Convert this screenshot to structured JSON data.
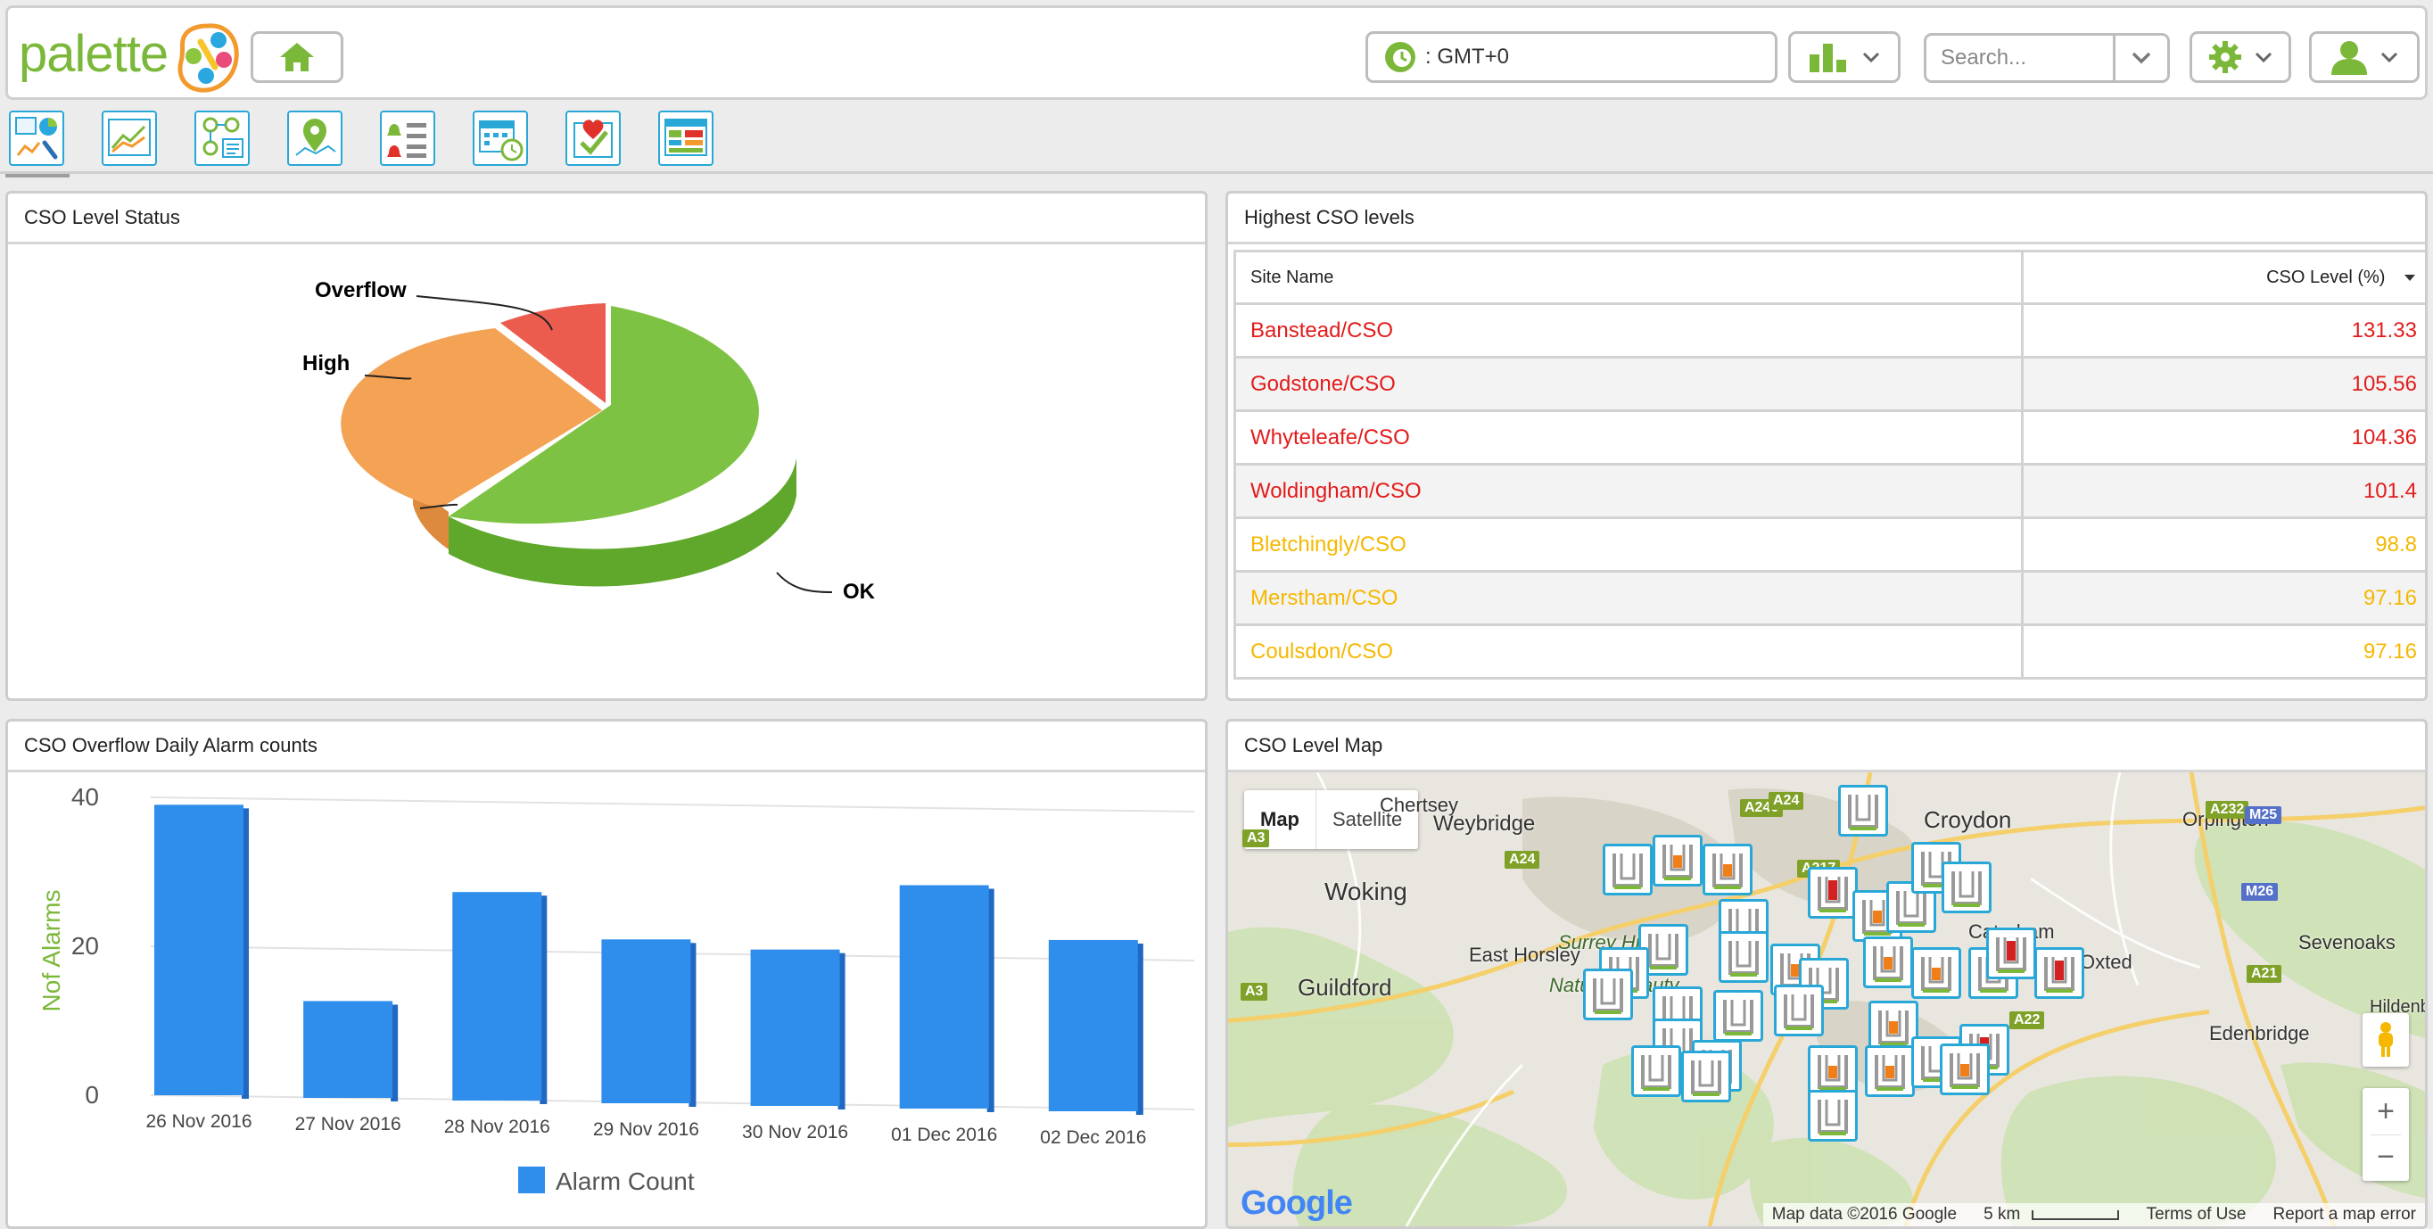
{
  "header": {
    "logo_text": "palette",
    "timezone": ": GMT+0",
    "search_placeholder": "Search...",
    "icons": [
      "home-icon",
      "timezone-icon",
      "bar-chart-icon",
      "chevron-down-icon",
      "gear-icon",
      "user-icon"
    ]
  },
  "nav": {
    "items": [
      "dashboard-icon",
      "trend-icon",
      "network-icon",
      "map-pin-icon",
      "alarm-list-icon",
      "calendar-clock-icon",
      "health-check-icon",
      "report-table-icon"
    ]
  },
  "colors": {
    "accent": "#29a8d8",
    "brand_green": "#7bb83a",
    "ok": "#7dc242",
    "high": "#f4a253",
    "overflow": "#ec5c4e",
    "bar": "#2f8deb",
    "level_red": "#e31b1b",
    "level_yellow": "#f5b800"
  },
  "panels": {
    "status": {
      "title": "CSO Level Status",
      "slices": [
        {
          "label": "OK",
          "percent": 70
        },
        {
          "label": "High",
          "percent": 21
        },
        {
          "label": "Overflow",
          "percent": 9
        }
      ]
    },
    "highest": {
      "title": "Highest CSO levels",
      "col_site": "Site Name",
      "col_level": "CSO Level (%)",
      "rows": [
        {
          "site": "Banstead/CSO",
          "level": "131.33",
          "status": "red"
        },
        {
          "site": "Godstone/CSO",
          "level": "105.56",
          "status": "red"
        },
        {
          "site": "Whyteleafe/CSO",
          "level": "104.36",
          "status": "red"
        },
        {
          "site": "Woldingham/CSO",
          "level": "101.4",
          "status": "red"
        },
        {
          "site": "Bletchingly/CSO",
          "level": "98.8",
          "status": "yellow"
        },
        {
          "site": "Merstham/CSO",
          "level": "97.16",
          "status": "yellow"
        },
        {
          "site": "Coulsdon/CSO",
          "level": "97.16",
          "status": "yellow"
        }
      ]
    },
    "alarms": {
      "title": "CSO Overflow Daily Alarm counts"
    },
    "map": {
      "title": "CSO Level Map",
      "type_map": "Map",
      "type_satellite": "Satellite",
      "places": [
        "Chertsey",
        "Weybridge",
        "Croydon",
        "Orpington",
        "Woking",
        "East Horsley",
        "Caterham",
        "Oxted",
        "Sevenoaks",
        "Guildford",
        "Edenbridge",
        "Hildenborough",
        "Surrey Hills",
        "Natural Beauty"
      ],
      "roads": [
        "A240",
        "A24",
        "A3",
        "A217",
        "A232",
        "M25",
        "M26",
        "A21",
        "A24",
        "A22",
        "A3"
      ],
      "footer_data": "Map data ©2016 Google",
      "footer_scale": "5 km",
      "footer_terms": "Terms of Use",
      "footer_report": "Report a map error",
      "google": "Google"
    }
  },
  "chart_data": {
    "type": "bar",
    "title": "",
    "ylabel": "Nof Alarms",
    "xlabel": "",
    "ylim": [
      0,
      40
    ],
    "yticks": [
      0,
      20,
      40
    ],
    "categories": [
      "26 Nov 2016",
      "27 Nov 2016",
      "28 Nov 2016",
      "29 Nov 2016",
      "30 Nov 2016",
      "01 Dec 2016",
      "02 Dec 2016"
    ],
    "series": [
      {
        "name": "Alarm Count",
        "values": [
          39,
          13,
          28,
          22,
          21,
          30,
          23
        ]
      }
    ],
    "legend": "bottom-center"
  }
}
